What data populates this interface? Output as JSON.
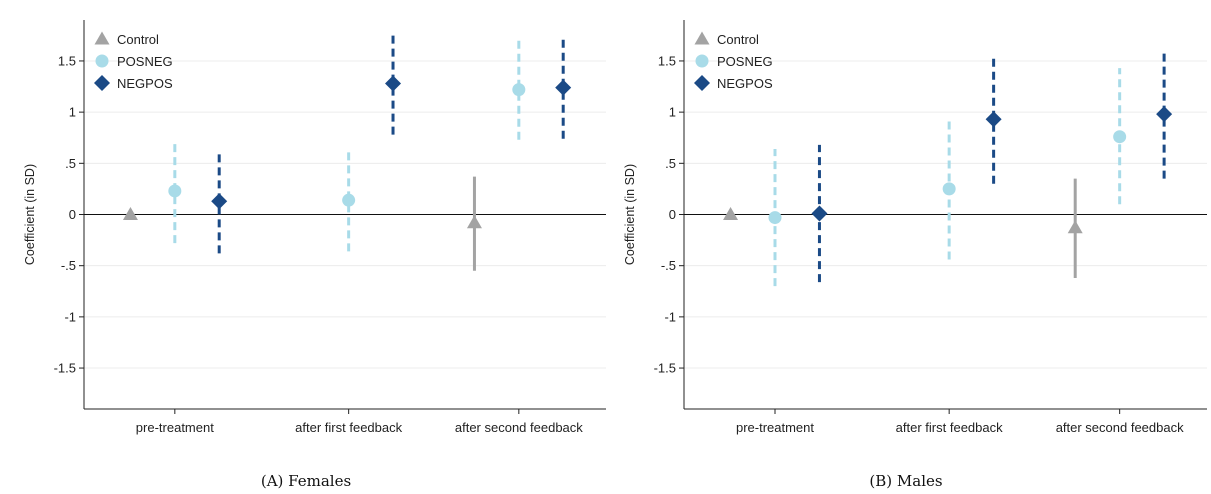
{
  "chart_data": [
    {
      "type": "scatter",
      "caption": "(A) Females",
      "ylabel": "Coefficient (in SD)",
      "xlabel": "",
      "categories": [
        "pre-treatment",
        "after first feedback",
        "after second feedback"
      ],
      "ylim": [
        -1.9,
        1.9
      ],
      "yticks": [
        1.5,
        1,
        0.5,
        0,
        -0.5,
        -1,
        -1.5
      ],
      "ytick_labels": [
        "1.5",
        "1",
        ".5",
        "0",
        "-.5",
        "-1",
        "-1.5"
      ],
      "grid": true,
      "legend_position": "top-left",
      "series": [
        {
          "name": "Control",
          "color": "#a3a3a3",
          "marker": "triangle",
          "line": "solid",
          "points": [
            {
              "category": "pre-treatment",
              "y": 0.0
            },
            {
              "category": "after second feedback",
              "y": -0.08,
              "lo": -0.55,
              "hi": 0.37
            }
          ]
        },
        {
          "name": "POSNEG",
          "color": "#a8dbe8",
          "marker": "circle",
          "line": "dashed",
          "points": [
            {
              "category": "pre-treatment",
              "y": 0.23,
              "lo": -0.28,
              "hi": 0.73
            },
            {
              "category": "after first feedback",
              "y": 0.14,
              "lo": -0.36,
              "hi": 0.64
            },
            {
              "category": "after second feedback",
              "y": 1.22,
              "lo": 0.73,
              "hi": 1.72
            }
          ]
        },
        {
          "name": "NEGPOS",
          "color": "#1b4a86",
          "marker": "diamond",
          "line": "dashed",
          "points": [
            {
              "category": "pre-treatment",
              "y": 0.13,
              "lo": -0.38,
              "hi": 0.62
            },
            {
              "category": "after first feedback",
              "y": 1.28,
              "lo": 0.78,
              "hi": 1.78
            },
            {
              "category": "after second feedback",
              "y": 1.24,
              "lo": 0.74,
              "hi": 1.74
            }
          ]
        }
      ]
    },
    {
      "type": "scatter",
      "caption": "(B) Males",
      "ylabel": "Coefficient (in SD)",
      "xlabel": "",
      "categories": [
        "pre-treatment",
        "after first feedback",
        "after second feedback"
      ],
      "ylim": [
        -1.9,
        1.9
      ],
      "yticks": [
        1.5,
        1,
        0.5,
        0,
        -0.5,
        -1,
        -1.5
      ],
      "ytick_labels": [
        "1.5",
        "1",
        ".5",
        "0",
        "-.5",
        "-1",
        "-1.5"
      ],
      "grid": true,
      "legend_position": "top-left",
      "series": [
        {
          "name": "Control",
          "color": "#a3a3a3",
          "marker": "triangle",
          "line": "solid",
          "points": [
            {
              "category": "pre-treatment",
              "y": 0.0
            },
            {
              "category": "after second feedback",
              "y": -0.13,
              "lo": -0.62,
              "hi": 0.35
            }
          ]
        },
        {
          "name": "POSNEG",
          "color": "#a8dbe8",
          "marker": "circle",
          "line": "dashed",
          "points": [
            {
              "category": "pre-treatment",
              "y": -0.03,
              "lo": -0.7,
              "hi": 0.64
            },
            {
              "category": "after first feedback",
              "y": 0.25,
              "lo": -0.44,
              "hi": 0.94
            },
            {
              "category": "after second feedback",
              "y": 0.76,
              "lo": 0.1,
              "hi": 1.43
            }
          ]
        },
        {
          "name": "NEGPOS",
          "color": "#1b4a86",
          "marker": "diamond",
          "line": "dashed",
          "points": [
            {
              "category": "pre-treatment",
              "y": 0.01,
              "lo": -0.66,
              "hi": 0.68
            },
            {
              "category": "after first feedback",
              "y": 0.93,
              "lo": 0.3,
              "hi": 1.56
            },
            {
              "category": "after second feedback",
              "y": 0.98,
              "lo": 0.35,
              "hi": 1.61
            }
          ]
        }
      ]
    }
  ]
}
